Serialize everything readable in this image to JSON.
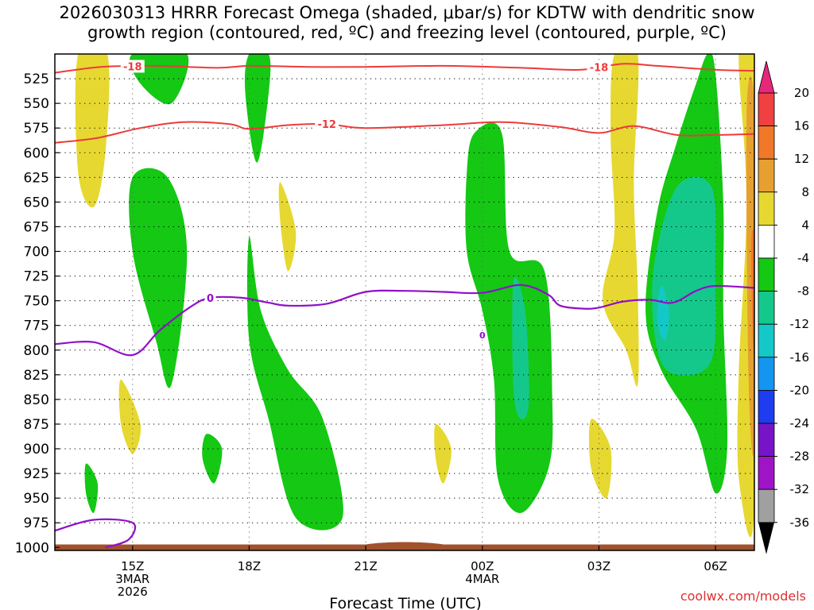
{
  "chart_data": {
    "type": "heatmap",
    "title_lines": [
      "2026030313 HRRR Forecast Omega (shaded, μbar/s) for KDTW with dendritic snow",
      "growth region (contoured, red, ºC) and freezing level (contoured, purple, ºC)"
    ],
    "xlabel": "Forecast Time (UTC)",
    "ylabel": "",
    "x_unit": "hours since 2026-03-03 13Z",
    "xlim": [
      0,
      18
    ],
    "y_levels_hpa": [
      525,
      550,
      575,
      600,
      625,
      650,
      675,
      700,
      725,
      750,
      775,
      800,
      825,
      850,
      875,
      900,
      925,
      950,
      975,
      1000
    ],
    "ylim_hpa": [
      500,
      1003
    ],
    "x_ticks": [
      {
        "x": 2,
        "lines": [
          "15Z",
          "3MAR",
          "2026"
        ]
      },
      {
        "x": 5,
        "lines": [
          "18Z"
        ]
      },
      {
        "x": 8,
        "lines": [
          "21Z"
        ]
      },
      {
        "x": 11,
        "lines": [
          "00Z",
          "4MAR"
        ]
      },
      {
        "x": 14,
        "lines": [
          "03Z"
        ]
      },
      {
        "x": 17,
        "lines": [
          "06Z"
        ]
      }
    ],
    "grid": true,
    "colorbar": {
      "ticks": [
        20,
        16,
        12,
        8,
        4,
        -4,
        -8,
        -12,
        -16,
        -20,
        -24,
        -28,
        -32,
        -36
      ],
      "bins": [
        {
          "min": 16,
          "max": 20,
          "color": "#f04040"
        },
        {
          "min": 12,
          "max": 16,
          "color": "#f07828"
        },
        {
          "min": 8,
          "max": 12,
          "color": "#e6a030"
        },
        {
          "min": 4,
          "max": 8,
          "color": "#e6d830"
        },
        {
          "min": -4,
          "max": 4,
          "color": "#ffffff"
        },
        {
          "min": -8,
          "max": -4,
          "color": "#14c814"
        },
        {
          "min": -12,
          "max": -8,
          "color": "#14c88c"
        },
        {
          "min": -16,
          "max": -12,
          "color": "#14c8c8"
        },
        {
          "min": -20,
          "max": -16,
          "color": "#1496f0"
        },
        {
          "min": -24,
          "max": -20,
          "color": "#1e3cf0"
        },
        {
          "min": -28,
          "max": -24,
          "color": "#7814c8"
        },
        {
          "min": -32,
          "max": -28,
          "color": "#a014c8"
        },
        {
          "min": -36,
          "max": -32,
          "color": "#a0a0a0"
        }
      ],
      "over_color": "#e6287a",
      "under_color": "#000000"
    },
    "omega_regions": [
      {
        "bin": "4 to 8",
        "color": "#e6d830",
        "points": [
          [
            0.6,
            500
          ],
          [
            1.35,
            500
          ],
          [
            1.3,
            600
          ],
          [
            1.0,
            655
          ],
          [
            0.6,
            620
          ]
        ]
      },
      {
        "bin": "-8 to -4",
        "color": "#14c814",
        "points": [
          [
            2.0,
            500
          ],
          [
            3.4,
            500
          ],
          [
            3.0,
            550
          ],
          [
            2.2,
            530
          ]
        ]
      },
      {
        "bin": "-8 to -4",
        "color": "#14c814",
        "points": [
          [
            5.0,
            500
          ],
          [
            5.5,
            500
          ],
          [
            5.5,
            540
          ],
          [
            5.2,
            610
          ],
          [
            4.9,
            540
          ]
        ]
      },
      {
        "bin": "4 to 8",
        "color": "#e6d830",
        "points": [
          [
            5.8,
            630
          ],
          [
            6.2,
            680
          ],
          [
            6.0,
            720
          ],
          [
            5.8,
            670
          ]
        ]
      },
      {
        "bin": "-8 to -4",
        "color": "#14c814",
        "points": [
          [
            2.0,
            625
          ],
          [
            2.9,
            625
          ],
          [
            3.4,
            700
          ],
          [
            3.0,
            835
          ],
          [
            2.6,
            790
          ],
          [
            2.0,
            700
          ]
        ]
      },
      {
        "bin": "-8 to -4",
        "color": "#14c814",
        "points": [
          [
            5.0,
            685
          ],
          [
            5.3,
            760
          ],
          [
            6.0,
            820
          ],
          [
            6.9,
            870
          ],
          [
            7.4,
            970
          ],
          [
            6.2,
            970
          ],
          [
            5.5,
            870
          ],
          [
            5.0,
            790
          ]
        ]
      },
      {
        "bin": "4 to 8",
        "color": "#e6d830",
        "points": [
          [
            1.7,
            830
          ],
          [
            2.2,
            875
          ],
          [
            2.0,
            905
          ],
          [
            1.7,
            875
          ]
        ]
      },
      {
        "bin": "-8 to -4",
        "color": "#14c814",
        "points": [
          [
            3.9,
            885
          ],
          [
            4.3,
            900
          ],
          [
            4.1,
            935
          ],
          [
            3.8,
            910
          ]
        ]
      },
      {
        "bin": "-8 to -4",
        "color": "#14c814",
        "points": [
          [
            0.8,
            915
          ],
          [
            1.1,
            935
          ],
          [
            1.0,
            965
          ],
          [
            0.8,
            945
          ]
        ]
      },
      {
        "bin": "-8 to -4",
        "color": "#14c814",
        "points": [
          [
            10.8,
            580
          ],
          [
            11.5,
            580
          ],
          [
            11.7,
            700
          ],
          [
            12.6,
            720
          ],
          [
            12.8,
            850
          ],
          [
            12.7,
            920
          ],
          [
            12.0,
            965
          ],
          [
            11.4,
            930
          ],
          [
            11.3,
            830
          ],
          [
            11.0,
            760
          ],
          [
            10.6,
            700
          ],
          [
            10.6,
            620
          ]
        ]
      },
      {
        "bin": "-12 to -8",
        "color": "#14c88c",
        "points": [
          [
            11.8,
            730
          ],
          [
            12.1,
            760
          ],
          [
            12.2,
            850
          ],
          [
            12.0,
            870
          ],
          [
            11.8,
            840
          ]
        ]
      },
      {
        "bin": "4 to 8",
        "color": "#e6d830",
        "points": [
          [
            9.8,
            875
          ],
          [
            10.2,
            900
          ],
          [
            10.0,
            935
          ],
          [
            9.8,
            910
          ]
        ]
      },
      {
        "bin": "4 to 8",
        "color": "#e6d830",
        "points": [
          [
            14.4,
            500
          ],
          [
            15.0,
            500
          ],
          [
            14.9,
            630
          ],
          [
            15.0,
            740
          ],
          [
            15.0,
            835
          ],
          [
            14.7,
            800
          ],
          [
            14.1,
            750
          ],
          [
            14.4,
            680
          ],
          [
            14.3,
            580
          ]
        ]
      },
      {
        "bin": "4 to 8",
        "color": "#e6d830",
        "points": [
          [
            13.8,
            870
          ],
          [
            14.3,
            900
          ],
          [
            14.2,
            950
          ],
          [
            13.8,
            920
          ]
        ]
      },
      {
        "bin": "-8 to -4",
        "color": "#14c814",
        "points": [
          [
            16.8,
            500
          ],
          [
            17.0,
            520
          ],
          [
            17.2,
            650
          ],
          [
            17.2,
            760
          ],
          [
            17.3,
            900
          ],
          [
            17.0,
            945
          ],
          [
            16.5,
            880
          ],
          [
            15.6,
            820
          ],
          [
            15.2,
            760
          ],
          [
            15.5,
            660
          ],
          [
            16.0,
            590
          ],
          [
            16.5,
            530
          ]
        ]
      },
      {
        "bin": "-12 to -8",
        "color": "#14c88c",
        "points": [
          [
            16.0,
            635
          ],
          [
            16.9,
            635
          ],
          [
            17.0,
            720
          ],
          [
            16.9,
            810
          ],
          [
            16.0,
            825
          ],
          [
            15.5,
            800
          ],
          [
            15.4,
            720
          ]
        ]
      },
      {
        "bin": "-16 to -12",
        "color": "#14c8c8",
        "points": [
          [
            15.6,
            735
          ],
          [
            15.8,
            760
          ],
          [
            15.7,
            790
          ],
          [
            15.5,
            770
          ]
        ]
      },
      {
        "bin": "4 to 8",
        "color": "#e6d830",
        "points": [
          [
            17.6,
            500
          ],
          [
            18.0,
            500
          ],
          [
            18.0,
            960
          ],
          [
            17.6,
            930
          ],
          [
            17.6,
            820
          ],
          [
            17.8,
            650
          ]
        ]
      },
      {
        "bin": "8 to 12",
        "color": "#e6a030",
        "points": [
          [
            17.8,
            560
          ],
          [
            18.0,
            560
          ],
          [
            18.0,
            890
          ],
          [
            17.85,
            830
          ]
        ]
      },
      {
        "bin": "12 to 16",
        "color": "#f07828",
        "points": [
          [
            17.92,
            690
          ],
          [
            18.0,
            690
          ],
          [
            18.0,
            800
          ],
          [
            17.95,
            780
          ]
        ]
      }
    ],
    "dgz_contours": [
      {
        "value": -18,
        "label": "-18",
        "label_positions_x": [
          2.0,
          14.0
        ],
        "points": [
          [
            0,
            519
          ],
          [
            1.2,
            513
          ],
          [
            2.6,
            512
          ],
          [
            4.2,
            514
          ],
          [
            5.0,
            512
          ],
          [
            6.5,
            513
          ],
          [
            8.0,
            513
          ],
          [
            10.0,
            512
          ],
          [
            12.0,
            514
          ],
          [
            13.5,
            516
          ],
          [
            14.6,
            510
          ],
          [
            15.5,
            512
          ],
          [
            17.0,
            516
          ],
          [
            18.0,
            517
          ]
        ]
      },
      {
        "value": -12,
        "label": "-12",
        "label_positions_x": [
          7.0
        ],
        "points": [
          [
            0,
            590
          ],
          [
            1.1,
            585
          ],
          [
            2.2,
            575
          ],
          [
            3.3,
            569
          ],
          [
            4.5,
            571
          ],
          [
            5.0,
            576
          ],
          [
            6.0,
            572
          ],
          [
            7.0,
            571
          ],
          [
            8.0,
            575
          ],
          [
            10.0,
            572
          ],
          [
            11.5,
            569
          ],
          [
            13.0,
            574
          ],
          [
            14.0,
            580
          ],
          [
            14.9,
            573
          ],
          [
            16.0,
            582
          ],
          [
            17.0,
            582
          ],
          [
            18.0,
            581
          ]
        ]
      }
    ],
    "freezing_level": {
      "value": 0,
      "label": "0",
      "label_position_x": 4.0,
      "points": [
        [
          0,
          794
        ],
        [
          1.0,
          792
        ],
        [
          2.0,
          805
        ],
        [
          2.7,
          780
        ],
        [
          3.5,
          756
        ],
        [
          4.0,
          747
        ],
        [
          4.8,
          747
        ],
        [
          5.5,
          752
        ],
        [
          6.0,
          755
        ],
        [
          7.0,
          753
        ],
        [
          8.0,
          741
        ],
        [
          9.0,
          740
        ],
        [
          10.0,
          741
        ],
        [
          11.0,
          742
        ],
        [
          12.0,
          734
        ],
        [
          12.7,
          744
        ],
        [
          13.0,
          755
        ],
        [
          13.6,
          758
        ],
        [
          14.0,
          757
        ],
        [
          14.6,
          751
        ],
        [
          15.3,
          749
        ],
        [
          15.9,
          752
        ],
        [
          16.5,
          740
        ],
        [
          17.0,
          735
        ],
        [
          18.0,
          737
        ]
      ]
    },
    "freezing_level_small": {
      "label": "0",
      "x": 11.0,
      "p": 785
    },
    "freezing_level_surface": {
      "points": [
        [
          1.3,
          1000
        ],
        [
          1.9,
          992
        ],
        [
          2.0,
          975
        ],
        [
          1.0,
          972
        ],
        [
          0,
          983
        ]
      ]
    },
    "terrain": {
      "color": "#a0522d",
      "top_hpa": 997
    }
  },
  "credit": "coolwx.com/models"
}
